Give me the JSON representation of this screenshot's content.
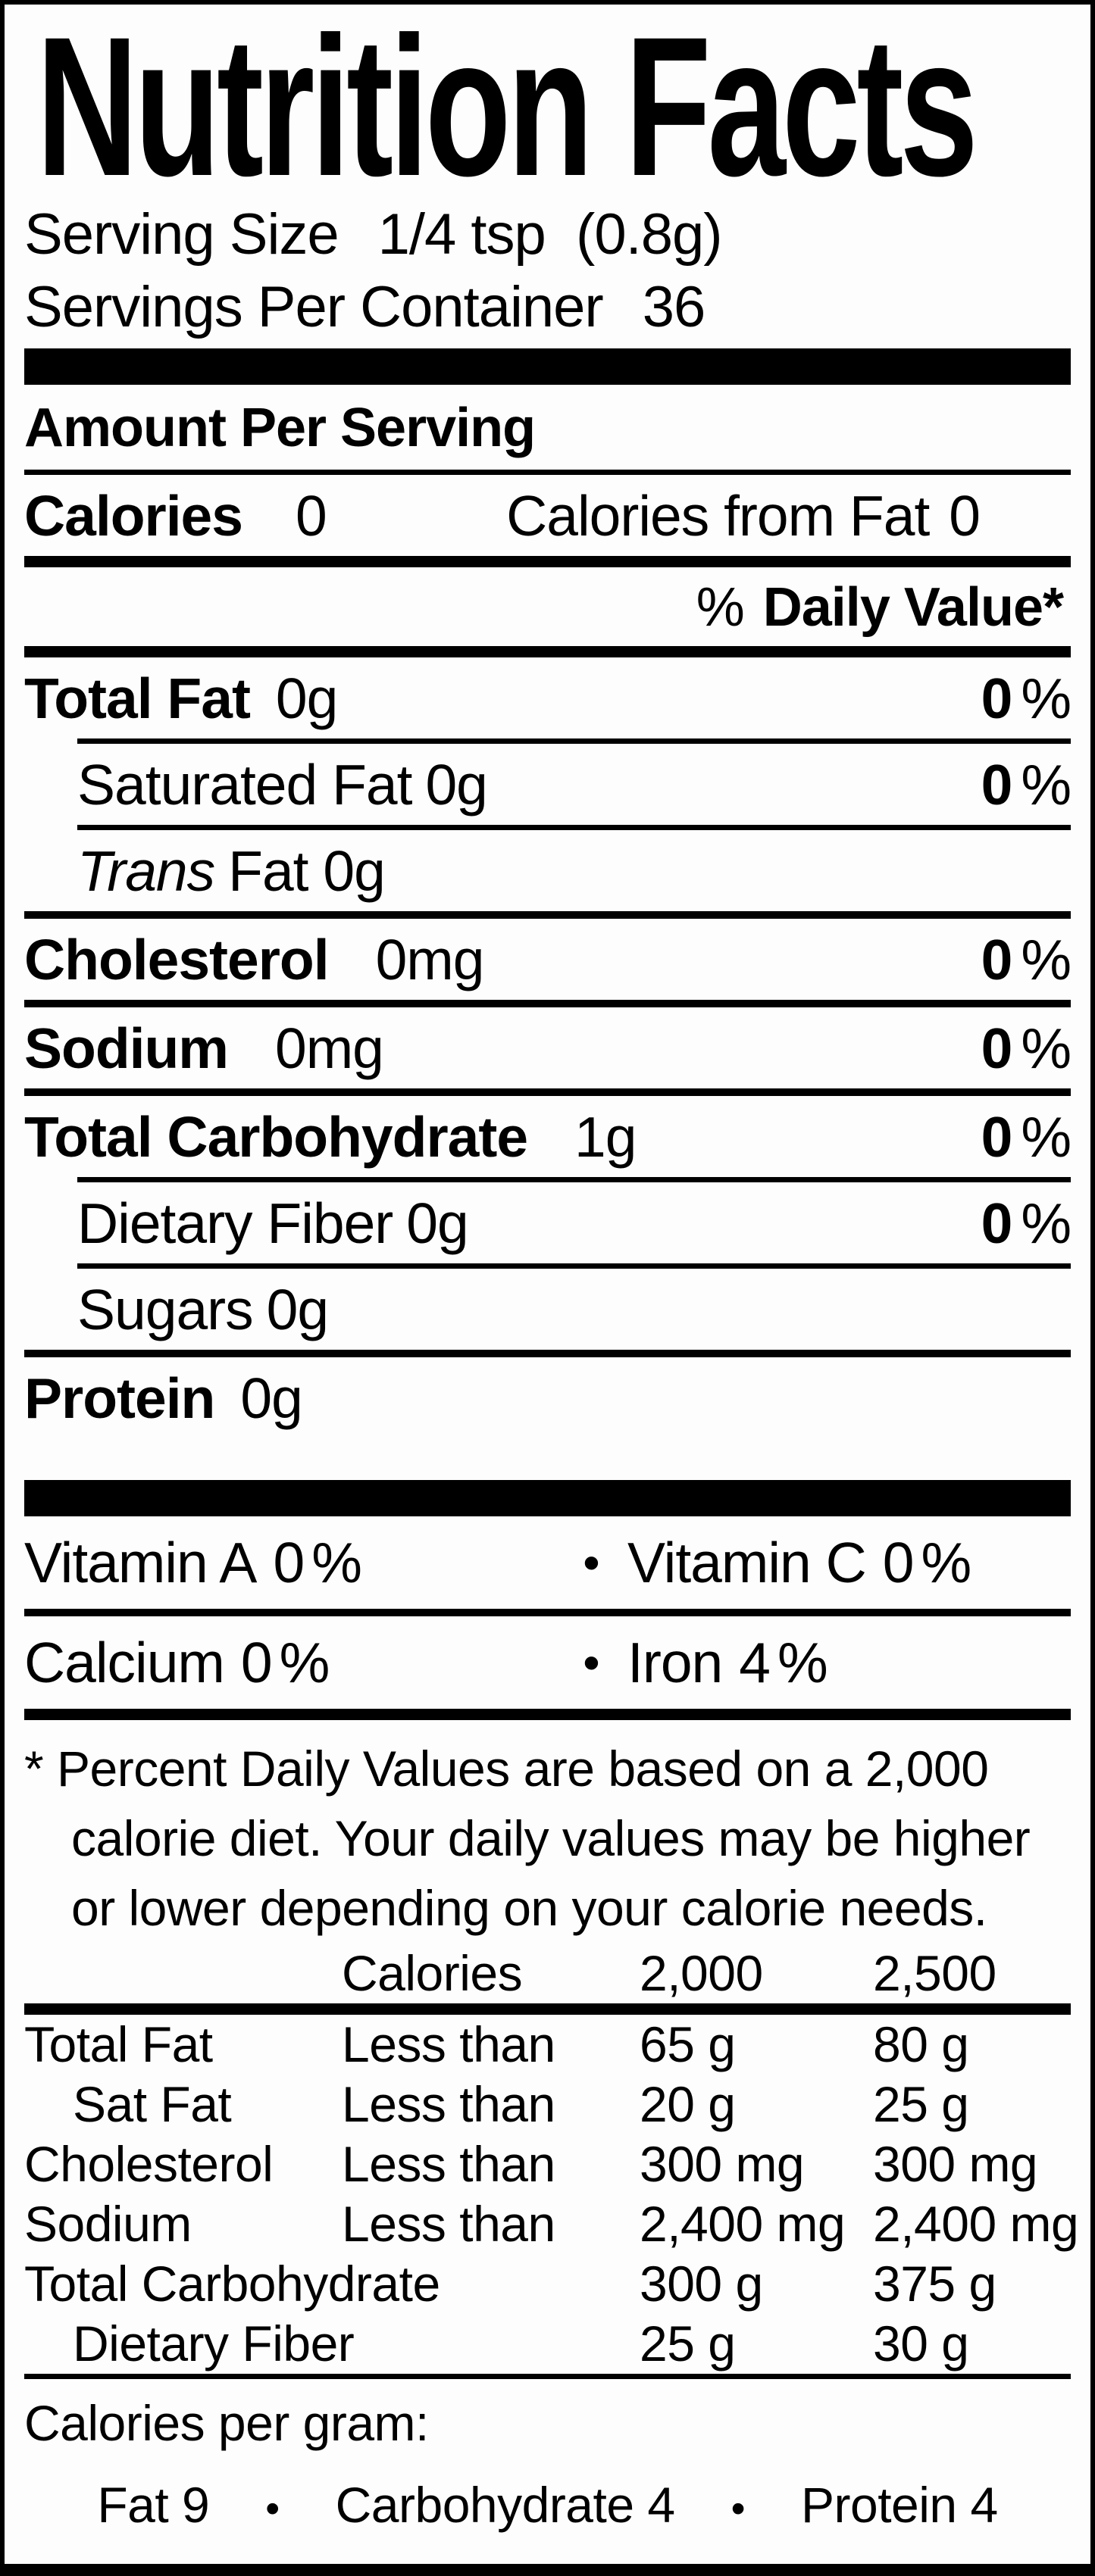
{
  "title": "Nutrition Facts",
  "serving": {
    "size_label": "Serving Size",
    "size_value": "1/4 tsp  (0.8g)",
    "container_label": "Servings Per Container",
    "container_value": "36"
  },
  "amount_per_serving": "Amount Per Serving",
  "calories": {
    "label": "Calories",
    "value": "0",
    "from_fat_label": "Calories from Fat",
    "from_fat_value": "0"
  },
  "daily_value_header": {
    "percent_sign": "%",
    "label": "Daily Value*"
  },
  "percent_sign": "%",
  "rows": {
    "total_fat": {
      "label": "Total Fat",
      "amount": "0g",
      "dv": "0"
    },
    "sat_fat": {
      "label": "Saturated Fat",
      "amount": "0g",
      "dv": "0"
    },
    "trans_fat": {
      "label_italic": "Trans",
      "label_rest": "Fat 0g"
    },
    "cholesterol": {
      "label": "Cholesterol",
      "amount": "0mg",
      "dv": "0"
    },
    "sodium": {
      "label": "Sodium",
      "amount": "0mg",
      "dv": "0"
    },
    "total_carb": {
      "label": "Total Carbohydrate",
      "amount": "1g",
      "dv": "0"
    },
    "dietary_fiber": {
      "label": "Dietary Fiber",
      "amount": "0g",
      "dv": "0"
    },
    "sugars": {
      "label": "Sugars",
      "amount": "0g"
    },
    "protein": {
      "label": "Protein",
      "amount": "0g"
    }
  },
  "vitamins": {
    "bullet": "•",
    "rows": [
      {
        "left_name": "Vitamin A",
        "left_value": "0",
        "right_name": "Vitamin C",
        "right_value": "0"
      },
      {
        "left_name": "Calcium",
        "left_value": "0",
        "right_name": "Iron",
        "right_value": "4"
      }
    ]
  },
  "footnote": {
    "line1": "* Percent Daily Values are based on a 2,000",
    "line2": "calorie diet. Your daily values may be higher",
    "line3": "or lower depending on your calorie needs."
  },
  "dv_table": {
    "headers": {
      "col1": "Calories",
      "col2": "2,000",
      "col3": "2,500"
    },
    "rows": [
      {
        "name": "Total Fat",
        "qualifier": "Less than",
        "v2000": "65 g",
        "v2500": "80 g"
      },
      {
        "name": "Sat Fat",
        "qualifier": "Less than",
        "v2000": "20 g",
        "v2500": "25 g"
      },
      {
        "name": "Cholesterol",
        "qualifier": "Less than",
        "v2000": "300 mg",
        "v2500": "300 mg"
      },
      {
        "name": "Sodium",
        "qualifier": "Less than",
        "v2000": "2,400 mg",
        "v2500": "2,400 mg"
      },
      {
        "name": "Total Carbohydrate",
        "qualifier": "",
        "v2000": "300 g",
        "v2500": "375 g"
      },
      {
        "name": "Dietary Fiber",
        "qualifier": "",
        "v2000": "25 g",
        "v2500": "30 g"
      }
    ]
  },
  "calories_per_gram": {
    "label": "Calories per gram:",
    "bullet": "•",
    "items": [
      "Fat 9",
      "Carbohydrate 4",
      "Protein 4"
    ]
  }
}
